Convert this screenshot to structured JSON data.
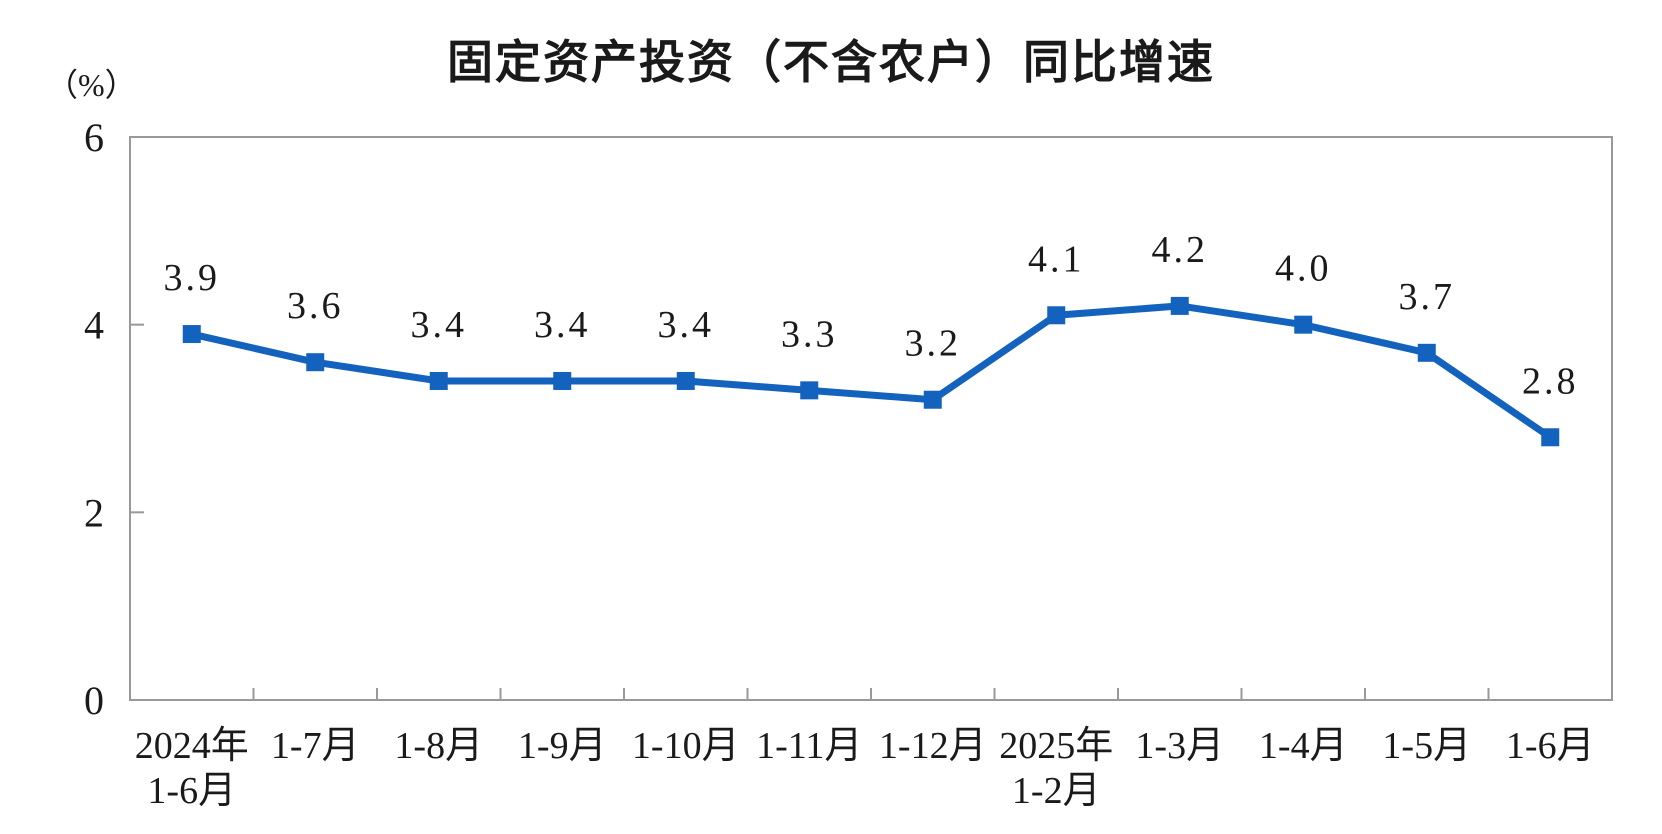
{
  "page": {
    "title": "固定资产投资（不含农户）同比增速",
    "unit_label": "（%）"
  },
  "chart_data": {
    "type": "line",
    "title": "固定资产投资（不含农户）同比增速",
    "ylabel": "（%）",
    "xlabel": "",
    "categories": [
      "2024年\n1-6月",
      "1-7月",
      "1-8月",
      "1-9月",
      "1-10月",
      "1-11月",
      "1-12月",
      "2025年\n1-2月",
      "1-3月",
      "1-4月",
      "1-5月",
      "1-6月"
    ],
    "values": [
      3.9,
      3.6,
      3.4,
      3.4,
      3.4,
      3.3,
      3.2,
      4.1,
      4.2,
      4.0,
      3.7,
      2.8
    ],
    "data_labels": [
      "3.9",
      "3.6",
      "3.4",
      "3.4",
      "3.4",
      "3.3",
      "3.2",
      "4.1",
      "4.2",
      "4.0",
      "3.7",
      "2.8"
    ],
    "y_ticks": [
      0,
      2,
      4,
      6
    ],
    "ylim": [
      0,
      6
    ],
    "grid": false,
    "legend_position": "none",
    "line_color": "#1262BE",
    "marker": "square",
    "axis_color": "#999999",
    "text_color": "#1a1a1a"
  }
}
